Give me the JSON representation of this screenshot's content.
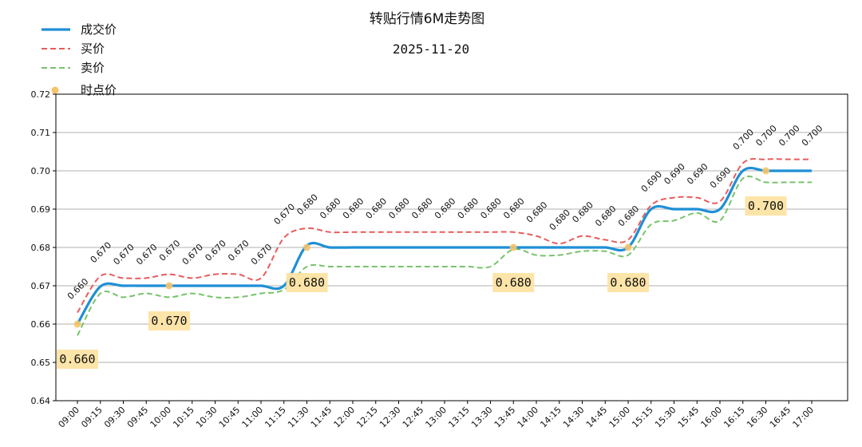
{
  "chart_data": {
    "type": "line",
    "title": "转贴行情6M走势图",
    "subtitle": "2025-11-20",
    "x": [
      "09:00",
      "09:15",
      "09:30",
      "09:45",
      "10:00",
      "10:15",
      "10:30",
      "10:45",
      "11:00",
      "11:15",
      "11:30",
      "11:45",
      "12:00",
      "12:15",
      "12:30",
      "12:45",
      "13:00",
      "13:15",
      "13:30",
      "13:45",
      "14:00",
      "14:15",
      "14:30",
      "14:45",
      "15:00",
      "15:15",
      "15:30",
      "15:45",
      "16:00",
      "16:15",
      "16:30",
      "16:45",
      "17:00"
    ],
    "ylim": [
      0.64,
      0.72
    ],
    "yticks": [
      "0.64",
      "0.65",
      "0.66",
      "0.67",
      "0.68",
      "0.69",
      "0.70",
      "0.71",
      "0.72"
    ],
    "grid": "horizontal",
    "legend_position": "top-left",
    "series": [
      {
        "name": "成交价",
        "style": "solid",
        "color": "#1f8fd6",
        "values": [
          0.66,
          0.6698,
          0.67,
          0.67,
          0.67,
          0.67,
          0.67,
          0.67,
          0.67,
          0.67,
          0.6805,
          0.68,
          0.68,
          0.68,
          0.68,
          0.68,
          0.68,
          0.68,
          0.68,
          0.68,
          0.68,
          0.68,
          0.68,
          0.68,
          0.68,
          0.69,
          0.69,
          0.69,
          0.69,
          0.7,
          0.7,
          0.7,
          0.7
        ]
      },
      {
        "name": "买价",
        "style": "dashed",
        "color": "#e85c5c",
        "values": [
          0.663,
          0.6725,
          0.672,
          0.672,
          0.673,
          0.672,
          0.673,
          0.673,
          0.672,
          0.6825,
          0.685,
          0.684,
          0.684,
          0.684,
          0.684,
          0.684,
          0.684,
          0.684,
          0.684,
          0.684,
          0.683,
          0.681,
          0.683,
          0.682,
          0.682,
          0.691,
          0.693,
          0.693,
          0.692,
          0.702,
          0.703,
          0.703,
          0.703
        ]
      },
      {
        "name": "卖价",
        "style": "dashed",
        "color": "#78c36c",
        "values": [
          0.657,
          0.668,
          0.667,
          0.668,
          0.667,
          0.668,
          0.667,
          0.667,
          0.668,
          0.669,
          0.675,
          0.675,
          0.675,
          0.675,
          0.675,
          0.675,
          0.675,
          0.675,
          0.675,
          0.6795,
          0.678,
          0.678,
          0.679,
          0.679,
          0.678,
          0.686,
          0.687,
          0.689,
          0.687,
          0.698,
          0.697,
          0.697,
          0.697
        ]
      }
    ],
    "points": {
      "name": "时点价",
      "color": "#f5c469",
      "x": [
        "09:00",
        "10:00",
        "11:30",
        "13:45",
        "15:00",
        "16:30"
      ],
      "values": [
        0.66,
        0.67,
        0.68,
        0.68,
        0.68,
        0.7
      ]
    },
    "point_labels": [
      "0.660",
      "0.670",
      "0.670",
      "0.670",
      "0.670",
      "0.670",
      "0.670",
      "0.670",
      "0.670",
      "0.670",
      "0.680",
      "0.680",
      "0.680",
      "0.680",
      "0.680",
      "0.680",
      "0.680",
      "0.680",
      "0.680",
      "0.680",
      "0.680",
      "0.680",
      "0.680",
      "0.680",
      "0.680",
      "0.690",
      "0.690",
      "0.690",
      "0.690",
      "0.700",
      "0.700",
      "0.700",
      "0.700"
    ],
    "callouts": [
      {
        "text": "0.660",
        "x": "09:00",
        "y": 0.66,
        "bg": "#fde3a3"
      },
      {
        "text": "0.670",
        "x": "10:00",
        "y": 0.67,
        "bg": "#fde3a3"
      },
      {
        "text": "0.680",
        "x": "11:30",
        "y": 0.68,
        "bg": "#fde3a3"
      },
      {
        "text": "0.680",
        "x": "13:45",
        "y": 0.68,
        "bg": "#fde3a3"
      },
      {
        "text": "0.680",
        "x": "15:00",
        "y": 0.68,
        "bg": "#fde3a3"
      },
      {
        "text": "0.700",
        "x": "16:30",
        "y": 0.7,
        "bg": "#fde3a3"
      }
    ]
  }
}
